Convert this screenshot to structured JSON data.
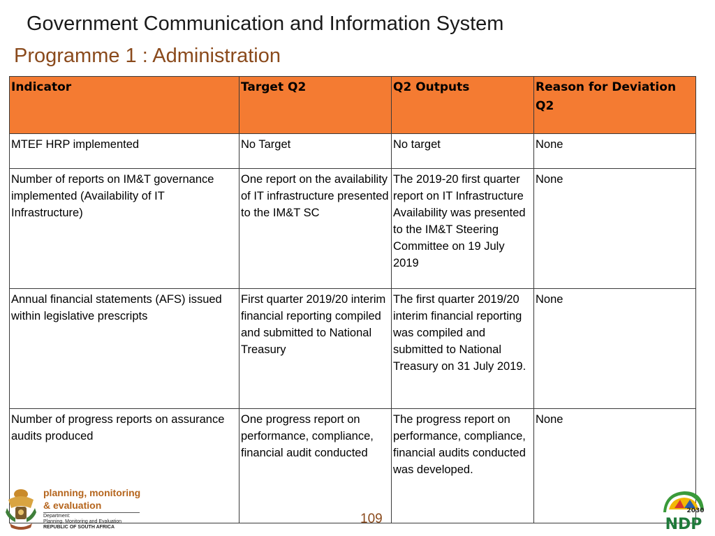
{
  "header": {
    "org_title": "Government Communication and Information System",
    "programme_title": "Programme 1 : Administration"
  },
  "table": {
    "headers": [
      "Indicator",
      "Target Q2",
      "Q2 Outputs",
      "Reason for Deviation Q2"
    ],
    "rows": [
      [
        "MTEF HRP implemented",
        "No Target",
        "No target",
        "None"
      ],
      [
        "Number of reports on  IM&T governance implemented (Availability of IT Infrastructure)",
        "One report on the availability of IT infrastructure presented to the IM&T SC",
        "The 2019-20 first quarter report on IT Infrastructure Availability was presented to the IM&T Steering Committee on 19 July 2019",
        "None"
      ],
      [
        "Annual financial statements (AFS) issued within legislative prescripts",
        "First quarter 2019/20 interim financial reporting compiled and submitted to National Treasury",
        "The first quarter 2019/20 interim financial reporting was compiled and submitted to National Treasury on 31 July 2019.",
        "None"
      ],
      [
        "Number of progress reports on assurance audits produced",
        "One progress report on performance, compliance, financial audit conducted",
        "The progress report on performance, compliance, financial audits conducted was developed.",
        "None"
      ]
    ]
  },
  "footer": {
    "logo_line1": "planning, monitoring",
    "logo_line2": "& evaluation",
    "dept_line1": "Department:",
    "dept_line2": "Planning, Monitoring and Evaluation",
    "dept_line3": "REPUBLIC OF SOUTH AFRICA",
    "page_number": "109",
    "ndp_text": "NDP",
    "ndp_year": "2030"
  },
  "colors": {
    "header_fill": "#f47b32",
    "programme_title": "#8a4a1c"
  }
}
